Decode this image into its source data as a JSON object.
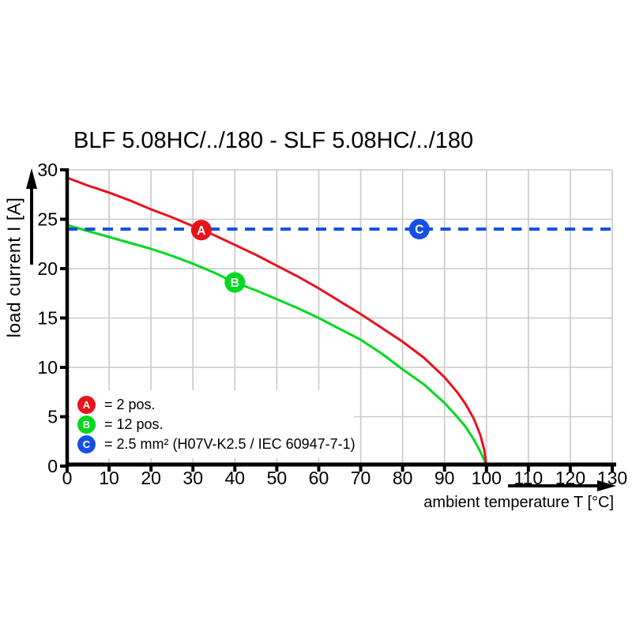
{
  "title": "BLF 5.08HC/../180 - SLF 5.08HC/../180",
  "axes": {
    "x": {
      "label": "ambient temperature T [°C]"
    },
    "y": {
      "label": "load current I [A]"
    }
  },
  "colors": {
    "red": "#e8121d",
    "green": "#00d91f",
    "blue": "#1551e1",
    "grid": "#c9c9c9",
    "axis": "#000000",
    "marker_text": "#ffffff",
    "background": "#ffffff"
  },
  "legend": {
    "items": [
      {
        "letter": "A",
        "color": "#e8121d",
        "label": "= 2 pos."
      },
      {
        "letter": "B",
        "color": "#00d91f",
        "label": "= 12 pos."
      },
      {
        "letter": "C",
        "color": "#1551e1",
        "label": "= 2.5 mm² (H07V-K2.5 / IEC 60947-7-1)"
      }
    ]
  },
  "chart_data": {
    "type": "line",
    "title": "BLF 5.08HC/../180 - SLF 5.08HC/../180",
    "xlabel": "ambient temperature T [°C]",
    "ylabel": "load current I [A]",
    "xlim": [
      0,
      130
    ],
    "ylim": [
      0,
      30
    ],
    "x_ticks": [
      0,
      10,
      20,
      30,
      40,
      50,
      60,
      70,
      80,
      90,
      100,
      110,
      120,
      130
    ],
    "y_ticks": [
      0,
      5,
      10,
      15,
      20,
      25,
      30
    ],
    "grid": true,
    "legend_position": "bottom-left-inside",
    "series": [
      {
        "id": "series-a",
        "name": "A = 2 pos.",
        "color": "#e8121d",
        "line_style": "solid",
        "marker": {
          "letter": "A",
          "x": 32,
          "y": 23.9
        },
        "points": [
          [
            0,
            29.2
          ],
          [
            5,
            28.4
          ],
          [
            10,
            27.7
          ],
          [
            15,
            26.9
          ],
          [
            20,
            26.0
          ],
          [
            25,
            25.2
          ],
          [
            30,
            24.3
          ],
          [
            35,
            23.4
          ],
          [
            40,
            22.4
          ],
          [
            45,
            21.4
          ],
          [
            50,
            20.3
          ],
          [
            55,
            19.2
          ],
          [
            60,
            18.0
          ],
          [
            65,
            16.7
          ],
          [
            70,
            15.4
          ],
          [
            75,
            14.0
          ],
          [
            80,
            12.6
          ],
          [
            85,
            11.0
          ],
          [
            90,
            9.0
          ],
          [
            93,
            7.5
          ],
          [
            95,
            6.3
          ],
          [
            97,
            4.8
          ],
          [
            98.5,
            3.2
          ],
          [
            99.5,
            1.6
          ],
          [
            100,
            0
          ]
        ]
      },
      {
        "id": "series-b",
        "name": "B = 12 pos.",
        "color": "#00d91f",
        "line_style": "solid",
        "marker": {
          "letter": "B",
          "x": 40,
          "y": 18.6
        },
        "points": [
          [
            0,
            24.4
          ],
          [
            5,
            23.8
          ],
          [
            10,
            23.2
          ],
          [
            15,
            22.6
          ],
          [
            20,
            22.0
          ],
          [
            25,
            21.3
          ],
          [
            30,
            20.5
          ],
          [
            35,
            19.6
          ],
          [
            40,
            18.6
          ],
          [
            45,
            17.8
          ],
          [
            50,
            16.9
          ],
          [
            55,
            16.0
          ],
          [
            60,
            15.0
          ],
          [
            65,
            13.9
          ],
          [
            70,
            12.8
          ],
          [
            75,
            11.4
          ],
          [
            80,
            9.8
          ],
          [
            85,
            8.3
          ],
          [
            90,
            6.4
          ],
          [
            93,
            5.0
          ],
          [
            95,
            4.0
          ],
          [
            97,
            2.7
          ],
          [
            98.5,
            1.5
          ],
          [
            99.5,
            0.6
          ],
          [
            100,
            0
          ]
        ]
      },
      {
        "id": "series-c",
        "name": "C = 2.5 mm² (H07V-K2.5 / IEC 60947-7-1)",
        "color": "#1551e1",
        "line_style": "dashed",
        "marker": {
          "letter": "C",
          "x": 84,
          "y": 24
        },
        "points": [
          [
            0,
            24
          ],
          [
            130,
            24
          ]
        ]
      }
    ]
  }
}
